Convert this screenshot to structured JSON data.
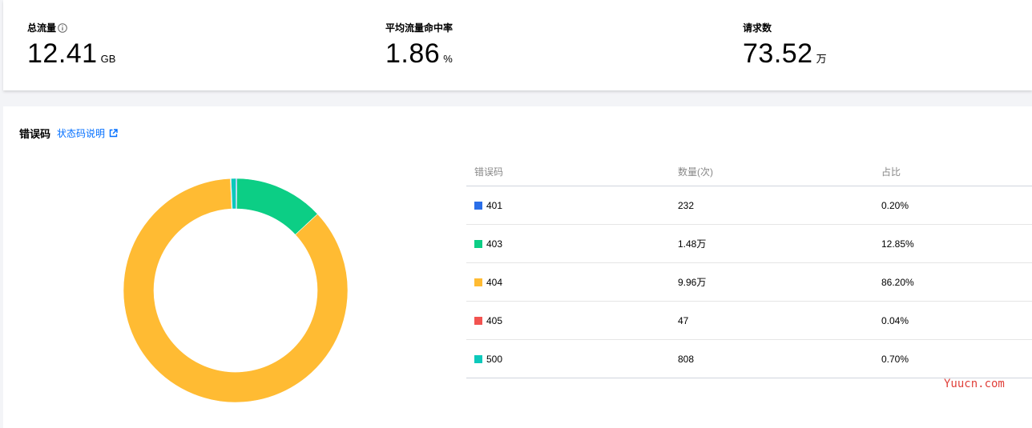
{
  "stats": [
    {
      "label": "总流量",
      "value": "12.41",
      "unit": "GB",
      "has_info": true
    },
    {
      "label": "平均流量命中率",
      "value": "1.86",
      "unit": "%",
      "has_info": false
    },
    {
      "label": "请求数",
      "value": "73.52",
      "unit": "万",
      "has_info": false
    }
  ],
  "error_section": {
    "title": "错误码",
    "link_label": "状态码说明",
    "columns": [
      "错误码",
      "数量(次)",
      "占比"
    ],
    "rows": [
      {
        "code": "401",
        "count": "232",
        "ratio": "0.20%",
        "color": "#2a6ee8"
      },
      {
        "code": "403",
        "count": "1.48万",
        "ratio": "12.85%",
        "color": "#0cce85"
      },
      {
        "code": "404",
        "count": "9.96万",
        "ratio": "86.20%",
        "color": "#ffbb33"
      },
      {
        "code": "405",
        "count": "47",
        "ratio": "0.04%",
        "color": "#f25350"
      },
      {
        "code": "500",
        "count": "808",
        "ratio": "0.70%",
        "color": "#0cc9bb"
      }
    ]
  },
  "chart_data": {
    "type": "pie",
    "variant": "donut",
    "labels": [
      "401",
      "403",
      "404",
      "405",
      "500"
    ],
    "values": [
      0.2,
      12.85,
      86.2,
      0.04,
      0.7
    ],
    "colors": [
      "#2a6ee8",
      "#0cce85",
      "#ffbb33",
      "#f25350",
      "#0cc9bb"
    ]
  },
  "watermark": "Yuucn.com"
}
